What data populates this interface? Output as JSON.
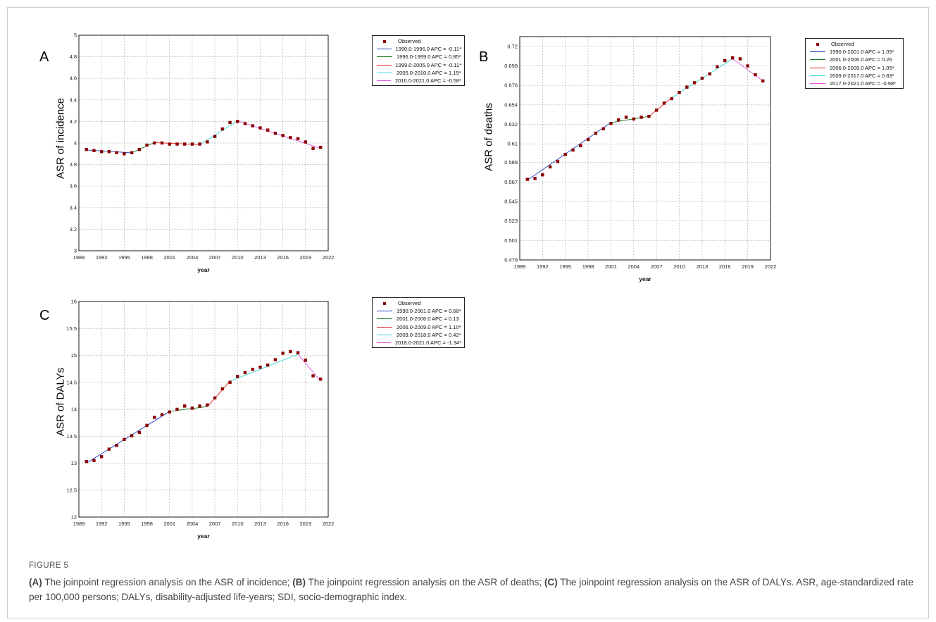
{
  "colors": {
    "observed": "#8b0000",
    "seg1": "#1f3fbf",
    "seg2": "#1a7a1a",
    "seg3": "#e02020",
    "seg4": "#35d6d6",
    "seg5": "#e055e0",
    "grid": "#b5b5b5"
  },
  "chart_data": [
    {
      "type": "scatter",
      "panel_letter": "A",
      "ylabel": "ASR of incidence",
      "xlabel": "year",
      "xlim": [
        1989,
        2022
      ],
      "ylim": [
        3,
        5
      ],
      "x_ticks": [
        1989,
        1992,
        1995,
        1998,
        2001,
        2004,
        2007,
        2010,
        2013,
        2016,
        2019,
        2022
      ],
      "y_ticks": [
        3,
        3.2,
        3.4,
        3.6,
        3.8,
        4,
        4.2,
        4.4,
        4.6,
        4.8,
        5
      ],
      "y_tick_labels": [
        "3",
        "3.2",
        "3.4",
        "3.6",
        "3.8",
        "4",
        "4.2",
        "4.4",
        "4.6",
        "4.8",
        "5"
      ],
      "legend": [
        "Observed",
        "1990.0-1996.0 APC = -0.11*",
        "1996.0-1999.0 APC = 0.85*",
        "1999.0-2005.0 APC = -0.11*",
        "2005.0-2010.0 APC = 1.15*",
        "2010.0-2021.0 APC = -0.58*"
      ],
      "observed": {
        "x": [
          1990,
          1991,
          1992,
          1993,
          1994,
          1995,
          1996,
          1997,
          1998,
          1999,
          2000,
          2001,
          2002,
          2003,
          2004,
          2005,
          2006,
          2007,
          2008,
          2009,
          2010,
          2011,
          2012,
          2013,
          2014,
          2015,
          2016,
          2017,
          2018,
          2019,
          2020,
          2021
        ],
        "y": [
          3.94,
          3.93,
          3.92,
          3.92,
          3.91,
          3.9,
          3.91,
          3.94,
          3.98,
          4.0,
          4.0,
          3.99,
          3.99,
          3.99,
          3.99,
          3.99,
          4.01,
          4.06,
          4.13,
          4.19,
          4.2,
          4.18,
          4.16,
          4.14,
          4.12,
          4.09,
          4.07,
          4.05,
          4.04,
          4.01,
          3.95,
          3.96
        ]
      },
      "segments": [
        {
          "x": [
            1990,
            1996
          ],
          "y": [
            3.935,
            3.909
          ]
        },
        {
          "x": [
            1996,
            1999
          ],
          "y": [
            3.909,
            4.004
          ]
        },
        {
          "x": [
            1999,
            2005
          ],
          "y": [
            4.004,
            3.985
          ]
        },
        {
          "x": [
            2005,
            2010
          ],
          "y": [
            3.985,
            4.205
          ]
        },
        {
          "x": [
            2010,
            2021
          ],
          "y": [
            4.205,
            3.95
          ]
        }
      ]
    },
    {
      "type": "scatter",
      "panel_letter": "B",
      "ylabel": "ASR of deaths",
      "xlabel": "year",
      "xlim": [
        1989,
        2022
      ],
      "ylim": [
        0.479,
        0.731
      ],
      "x_ticks": [
        1989,
        1992,
        1995,
        1998,
        2001,
        2004,
        2007,
        2010,
        2013,
        2016,
        2019,
        2022
      ],
      "y_ticks": [
        0.479,
        0.501,
        0.523,
        0.545,
        0.567,
        0.589,
        0.61,
        0.632,
        0.654,
        0.676,
        0.698,
        0.72
      ],
      "y_tick_labels": [
        "0.479",
        "0.501",
        "0.523",
        "0.545",
        "0.567",
        "0.589",
        "0.61",
        "0.632",
        "0.654",
        "0.676",
        "0.698",
        "0.72"
      ],
      "legend": [
        "Observed",
        "1990.0-2001.0 APC = 1.05*",
        "2001.0-2006.0 APC = 0.26",
        "2006.0-2009.0 APC = 1.05*",
        "2009.0-2017.0 APC = 0.83*",
        "2017.0-2021.0 APC = -0.98*"
      ],
      "observed": {
        "x": [
          1990,
          1991,
          1992,
          1993,
          1994,
          1995,
          1996,
          1997,
          1998,
          1999,
          2000,
          2001,
          2002,
          2003,
          2004,
          2005,
          2006,
          2007,
          2008,
          2009,
          2010,
          2011,
          2012,
          2013,
          2014,
          2015,
          2016,
          2017,
          2018,
          2019,
          2020,
          2021
        ],
        "y": [
          0.57,
          0.571,
          0.575,
          0.584,
          0.59,
          0.598,
          0.603,
          0.608,
          0.615,
          0.622,
          0.627,
          0.633,
          0.637,
          0.64,
          0.638,
          0.64,
          0.641,
          0.648,
          0.656,
          0.661,
          0.668,
          0.674,
          0.679,
          0.684,
          0.689,
          0.697,
          0.704,
          0.707,
          0.706,
          0.698,
          0.688,
          0.681
        ]
      },
      "segments": [
        {
          "x": [
            1990,
            2001
          ],
          "y": [
            0.569,
            0.634
          ]
        },
        {
          "x": [
            2001,
            2006
          ],
          "y": [
            0.634,
            0.641
          ]
        },
        {
          "x": [
            2006,
            2009
          ],
          "y": [
            0.641,
            0.662
          ]
        },
        {
          "x": [
            2009,
            2017
          ],
          "y": [
            0.662,
            0.706
          ]
        },
        {
          "x": [
            2017,
            2021
          ],
          "y": [
            0.706,
            0.681
          ]
        }
      ]
    },
    {
      "type": "scatter",
      "panel_letter": "C",
      "ylabel": "ASR of DALYs",
      "xlabel": "year",
      "xlim": [
        1989,
        2022
      ],
      "ylim": [
        12,
        16
      ],
      "x_ticks": [
        1989,
        1992,
        1995,
        1998,
        2001,
        2004,
        2007,
        2010,
        2013,
        2016,
        2019,
        2022
      ],
      "y_ticks": [
        12,
        12.5,
        13,
        13.5,
        14,
        14.5,
        15,
        15.5,
        16
      ],
      "y_tick_labels": [
        "12",
        "12.5",
        "13",
        "13.5",
        "14",
        "14.5",
        "15",
        "15.5",
        "16"
      ],
      "legend": [
        "Observed",
        "1990.0-2001.0 APC = 0.68*",
        "2001.0-2006.0 APC = 0.13",
        "2006.0-2009.0 APC = 1.10*",
        "2009.0-2018.0 APC = 0.42*",
        "2018.0-2021.0 APC = -1.34*"
      ],
      "observed": {
        "x": [
          1990,
          1991,
          1992,
          1993,
          1994,
          1995,
          1996,
          1997,
          1998,
          1999,
          2000,
          2001,
          2002,
          2003,
          2004,
          2005,
          2006,
          2007,
          2008,
          2009,
          2010,
          2011,
          2012,
          2013,
          2014,
          2015,
          2016,
          2017,
          2018,
          2019,
          2020,
          2021
        ],
        "y": [
          13.03,
          13.05,
          13.12,
          13.26,
          13.33,
          13.44,
          13.51,
          13.57,
          13.7,
          13.85,
          13.9,
          13.95,
          14.0,
          14.06,
          14.02,
          14.06,
          14.08,
          14.21,
          14.38,
          14.5,
          14.61,
          14.68,
          14.74,
          14.78,
          14.82,
          14.92,
          15.04,
          15.07,
          15.05,
          14.91,
          14.62,
          14.56
        ]
      },
      "segments": [
        {
          "x": [
            1990,
            2001
          ],
          "y": [
            13.0,
            13.96
          ]
        },
        {
          "x": [
            2001,
            2006
          ],
          "y": [
            13.96,
            14.05
          ]
        },
        {
          "x": [
            2006,
            2009
          ],
          "y": [
            14.05,
            14.52
          ]
        },
        {
          "x": [
            2009,
            2018
          ],
          "y": [
            14.52,
            15.02
          ]
        },
        {
          "x": [
            2018,
            2021
          ],
          "y": [
            15.02,
            14.52
          ]
        }
      ]
    }
  ],
  "caption": {
    "figure_label": "FIGURE 5",
    "a_label": "(A)",
    "a_text": " The joinpoint regression analysis on the ASR of incidence; ",
    "b_label": "(B)",
    "b_text": " The joinpoint regression analysis on the ASR of deaths; ",
    "c_label": "(C)",
    "c_text": " The joinpoint regression analysis on the ASR of DALYs. ASR, age-standardized rate per 100,000 persons; DALYs, disability-adjusted life-years; SDI, socio-demographic index."
  }
}
